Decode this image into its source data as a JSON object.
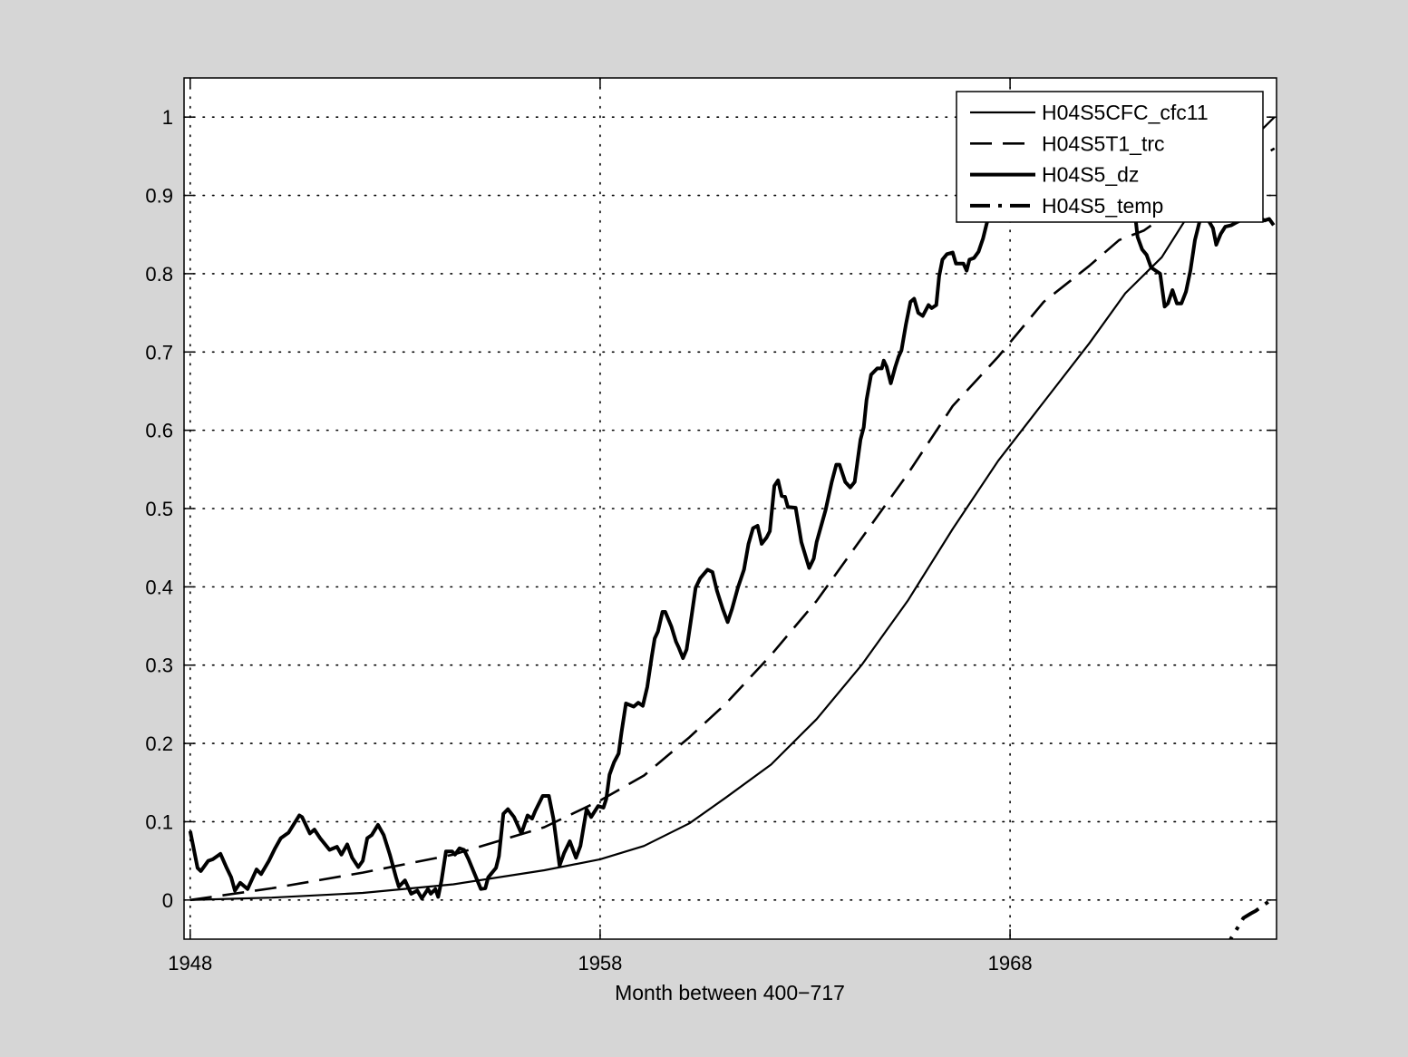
{
  "chart_data": {
    "type": "line",
    "title": "",
    "xlabel": "Month between 400−717",
    "ylabel": "",
    "xlim": [
      1947.85,
      1974.5
    ],
    "ylim": [
      -0.05,
      1.05
    ],
    "grid": true,
    "legend_position": "top-right",
    "xticks": [
      1948,
      1958,
      1968
    ],
    "xtick_labels": [
      "1948",
      "1958",
      "1968"
    ],
    "yticks": [
      0,
      0.1,
      0.2,
      0.3,
      0.4,
      0.5,
      0.6,
      0.7,
      0.8,
      0.9,
      1
    ],
    "ytick_labels": [
      "0",
      "0.1",
      "0.2",
      "0.3",
      "0.4",
      "0.5",
      "0.6",
      "0.7",
      "0.8",
      "0.9",
      "1"
    ],
    "series": [
      {
        "name": "H04S5CFC_cfc11",
        "style": "solid-thin",
        "x": [
          1948.0,
          1949.99,
          1952.21,
          1954.42,
          1956.64,
          1958.0,
          1959.07,
          1960.18,
          1961.07,
          1962.17,
          1963.28,
          1964.39,
          1965.5,
          1966.6,
          1967.71,
          1968.82,
          1969.93,
          1970.81,
          1971.7,
          1972.29,
          1972.58,
          1973.47,
          1974.45
        ],
        "y": [
          0,
          0.003,
          0.009,
          0.02,
          0.038,
          0.052,
          0.069,
          0.098,
          0.131,
          0.173,
          0.231,
          0.301,
          0.382,
          0.474,
          0.561,
          0.636,
          0.711,
          0.775,
          0.821,
          0.87,
          0.885,
          0.949,
          1.0
        ]
      },
      {
        "name": "H04S5T1_trc",
        "style": "dashed",
        "x": [
          1948.0,
          1949.99,
          1952.21,
          1954.42,
          1956.64,
          1958.0,
          1959.07,
          1960.18,
          1961.07,
          1962.17,
          1963.28,
          1964.39,
          1965.5,
          1966.6,
          1967.71,
          1968.82,
          1969.93,
          1970.66,
          1971.26,
          1972.5,
          1973.5,
          1974.45
        ],
        "y": [
          0,
          0.015,
          0.035,
          0.058,
          0.093,
          0.127,
          0.159,
          0.208,
          0.251,
          0.313,
          0.382,
          0.463,
          0.544,
          0.631,
          0.694,
          0.764,
          0.81,
          0.843,
          0.855,
          0.9,
          0.93,
          0.96
        ]
      },
      {
        "name": "H04S5_dz",
        "style": "solid-thick",
        "x": [
          1948.0,
          1948.18,
          1948.26,
          1948.44,
          1948.55,
          1948.74,
          1948.89,
          1949.0,
          1949.09,
          1949.22,
          1949.4,
          1949.62,
          1949.73,
          1949.92,
          1950.07,
          1950.21,
          1950.4,
          1950.66,
          1950.73,
          1950.92,
          1951.03,
          1951.17,
          1951.4,
          1951.58,
          1951.69,
          1951.83,
          1951.95,
          1952.1,
          1952.21,
          1952.32,
          1952.43,
          1952.58,
          1952.72,
          1952.87,
          1953.02,
          1953.09,
          1953.24,
          1953.39,
          1953.54,
          1953.65,
          1953.8,
          1953.87,
          1953.98,
          1954.05,
          1954.13,
          1954.24,
          1954.39,
          1954.46,
          1954.57,
          1954.68,
          1954.79,
          1954.94,
          1955.09,
          1955.2,
          1955.27,
          1955.46,
          1955.53,
          1955.64,
          1955.75,
          1955.9,
          1956.08,
          1956.23,
          1956.34,
          1956.42,
          1956.6,
          1956.75,
          1956.86,
          1957.01,
          1957.12,
          1957.26,
          1957.41,
          1957.52,
          1957.67,
          1957.78,
          1957.95,
          1958.08,
          1958.15,
          1958.23,
          1958.34,
          1958.45,
          1958.52,
          1958.63,
          1958.82,
          1958.93,
          1959.04,
          1959.15,
          1959.26,
          1959.33,
          1959.41,
          1959.52,
          1959.59,
          1959.74,
          1959.85,
          1959.92,
          1960.02,
          1960.11,
          1960.22,
          1960.33,
          1960.44,
          1960.62,
          1960.74,
          1960.85,
          1960.99,
          1961.11,
          1961.22,
          1961.36,
          1961.51,
          1961.62,
          1961.73,
          1961.84,
          1961.94,
          1962.06,
          1962.14,
          1962.25,
          1962.34,
          1962.43,
          1962.51,
          1962.58,
          1962.77,
          1962.91,
          1963.1,
          1963.21,
          1963.28,
          1963.5,
          1963.65,
          1963.76,
          1963.84,
          1963.98,
          1964.1,
          1964.21,
          1964.35,
          1964.43,
          1964.5,
          1964.61,
          1964.76,
          1964.87,
          1964.92,
          1964.99,
          1965.09,
          1965.2,
          1965.28,
          1965.35,
          1965.46,
          1965.57,
          1965.66,
          1965.76,
          1965.87,
          1966.01,
          1966.09,
          1966.2,
          1966.27,
          1966.35,
          1966.46,
          1966.6,
          1966.68,
          1966.86,
          1966.94,
          1967.01,
          1967.12,
          1967.23,
          1967.34,
          1967.42,
          1967.48,
          1968.0,
          1968.8,
          1969.6,
          1970.4,
          1970.9,
          1971.07,
          1971.11,
          1971.22,
          1971.33,
          1971.44,
          1971.55,
          1971.66,
          1971.77,
          1971.85,
          1971.96,
          1972.07,
          1972.18,
          1972.29,
          1972.4,
          1972.51,
          1972.62,
          1972.73,
          1972.84,
          1972.95,
          1973.03,
          1973.14,
          1973.25,
          1973.4,
          1973.54,
          1973.69,
          1973.91,
          1974.06,
          1974.21,
          1974.32,
          1974.43
        ],
        "y": [
          0.088,
          0.041,
          0.037,
          0.05,
          0.052,
          0.059,
          0.041,
          0.029,
          0.012,
          0.022,
          0.014,
          0.039,
          0.033,
          0.05,
          0.066,
          0.079,
          0.086,
          0.108,
          0.106,
          0.085,
          0.09,
          0.079,
          0.064,
          0.068,
          0.058,
          0.071,
          0.054,
          0.042,
          0.05,
          0.079,
          0.083,
          0.096,
          0.083,
          0.058,
          0.029,
          0.017,
          0.025,
          0.008,
          0.012,
          0.002,
          0.014,
          0.008,
          0.014,
          0.004,
          0.025,
          0.062,
          0.062,
          0.058,
          0.066,
          0.064,
          0.052,
          0.033,
          0.014,
          0.015,
          0.029,
          0.041,
          0.056,
          0.11,
          0.116,
          0.106,
          0.085,
          0.108,
          0.104,
          0.114,
          0.133,
          0.133,
          0.104,
          0.044,
          0.06,
          0.075,
          0.054,
          0.069,
          0.116,
          0.106,
          0.12,
          0.118,
          0.129,
          0.16,
          0.176,
          0.187,
          0.214,
          0.251,
          0.247,
          0.252,
          0.248,
          0.272,
          0.311,
          0.334,
          0.343,
          0.368,
          0.368,
          0.349,
          0.33,
          0.322,
          0.309,
          0.32,
          0.359,
          0.399,
          0.411,
          0.422,
          0.419,
          0.395,
          0.372,
          0.355,
          0.372,
          0.399,
          0.422,
          0.455,
          0.475,
          0.478,
          0.455,
          0.463,
          0.471,
          0.529,
          0.536,
          0.516,
          0.515,
          0.502,
          0.501,
          0.457,
          0.424,
          0.436,
          0.457,
          0.498,
          0.534,
          0.556,
          0.556,
          0.534,
          0.527,
          0.534,
          0.588,
          0.604,
          0.639,
          0.671,
          0.679,
          0.679,
          0.689,
          0.681,
          0.66,
          0.681,
          0.694,
          0.702,
          0.735,
          0.764,
          0.768,
          0.75,
          0.746,
          0.76,
          0.756,
          0.76,
          0.797,
          0.818,
          0.825,
          0.827,
          0.813,
          0.813,
          0.804,
          0.818,
          0.82,
          0.828,
          0.845,
          0.862,
          0.874,
          0.93,
          0.96,
          0.95,
          0.91,
          0.88,
          0.866,
          0.847,
          0.831,
          0.824,
          0.808,
          0.804,
          0.8,
          0.758,
          0.762,
          0.779,
          0.762,
          0.762,
          0.777,
          0.804,
          0.843,
          0.866,
          0.874,
          0.868,
          0.858,
          0.837,
          0.851,
          0.86,
          0.862,
          0.866,
          0.87,
          0.87,
          0.872,
          0.868,
          0.87,
          0.862
        ]
      },
      {
        "name": "H04S5_temp",
        "style": "dash-dot",
        "x": [
          1973.2,
          1973.4,
          1973.58,
          1973.69,
          1973.88,
          1973.99,
          1974.28,
          1974.36
        ],
        "y": [
          -0.07,
          -0.048,
          -0.033,
          -0.023,
          -0.017,
          -0.014,
          -0.003,
          0.0
        ]
      }
    ]
  }
}
